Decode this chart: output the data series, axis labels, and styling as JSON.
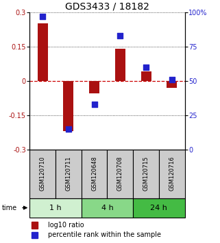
{
  "title": "GDS3433 / 18182",
  "samples": [
    "GSM120710",
    "GSM120711",
    "GSM120648",
    "GSM120708",
    "GSM120715",
    "GSM120716"
  ],
  "log10_ratio": [
    0.25,
    -0.22,
    -0.055,
    0.14,
    0.04,
    -0.03
  ],
  "percentile_rank": [
    97,
    15,
    33,
    83,
    60,
    51
  ],
  "time_groups": [
    {
      "label": "1 h",
      "start": 0,
      "end": 2,
      "color": "#d0f0d0"
    },
    {
      "label": "4 h",
      "start": 2,
      "end": 4,
      "color": "#88d888"
    },
    {
      "label": "24 h",
      "start": 4,
      "end": 6,
      "color": "#44bb44"
    }
  ],
  "ylim_left": [
    -0.3,
    0.3
  ],
  "ylim_right": [
    0,
    100
  ],
  "yticks_left": [
    -0.3,
    -0.15,
    0,
    0.15,
    0.3
  ],
  "ytick_labels_left": [
    "-0.3",
    "-0.15",
    "0",
    "0.15",
    "0.3"
  ],
  "yticks_right": [
    0,
    25,
    50,
    75,
    100
  ],
  "ytick_labels_right": [
    "0",
    "25",
    "50",
    "75",
    "100%"
  ],
  "bar_color": "#aa1111",
  "dot_color": "#2222cc",
  "hline_color": "#cc0000",
  "grid_color": "#222222",
  "background_color": "#ffffff",
  "sample_box_color": "#cccccc",
  "bar_width": 0.4,
  "dot_size": 28,
  "title_fontsize": 10,
  "tick_fontsize": 7,
  "sample_fontsize": 6,
  "legend_fontsize": 7,
  "time_label_fontsize": 8,
  "time_arrow_label_fontsize": 7
}
